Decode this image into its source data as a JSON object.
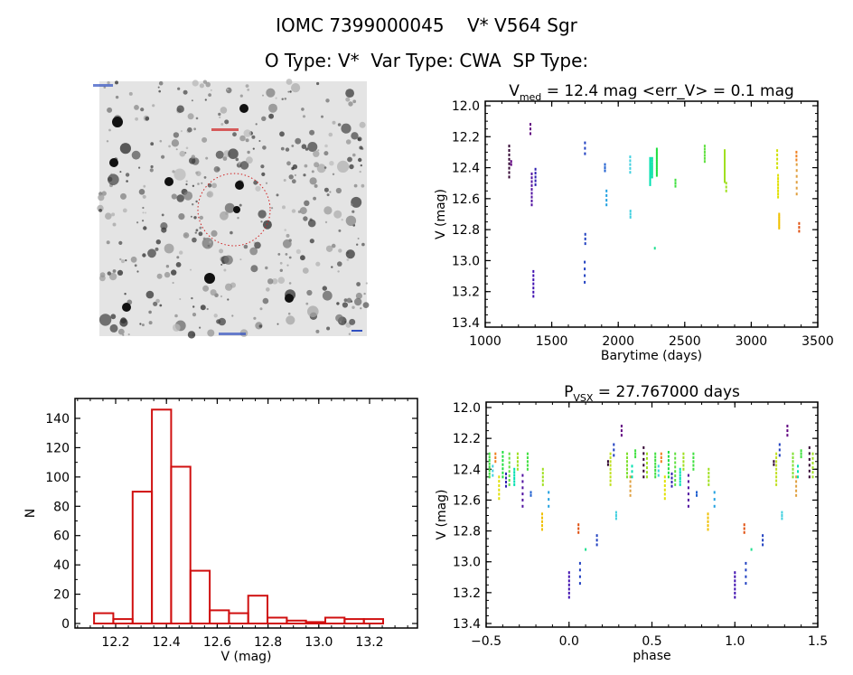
{
  "header": {
    "line1": "IOMC 7399000045    V* V564 Sgr",
    "line2": "O Type: V*  Var Type: CWA  SP Type:"
  },
  "image_panel": {
    "marker_color": "#d02020"
  },
  "chart_data": [
    {
      "type": "scatter",
      "id": "lightcurve",
      "title": "V_med = 12.4 mag <err_V> = 0.1 mag",
      "title_parts": {
        "v": "V",
        "sub": "med",
        "rest": " = 12.4 mag <err_V> = 0.1 mag"
      },
      "xlabel": "Barytime (days)",
      "ylabel": "V (mag)",
      "xlim": [
        1000,
        3500
      ],
      "ylim": [
        13.4,
        12.0
      ],
      "y_inverted": true,
      "xticks": [
        1000,
        1500,
        2000,
        2500,
        3000,
        3500
      ],
      "yticks": [
        "12.0",
        "12.2",
        "12.4",
        "12.6",
        "12.8",
        "13.0",
        "13.2",
        "13.4"
      ],
      "groups": [
        {
          "x": 1180,
          "v": [
            12.26,
            12.46
          ],
          "n": 8,
          "color": "#300030"
        },
        {
          "x": 1195,
          "v": [
            12.36,
            12.38
          ],
          "n": 2,
          "color": "#600080"
        },
        {
          "x": 1340,
          "v": [
            12.12,
            12.18
          ],
          "n": 3,
          "color": "#600080"
        },
        {
          "x": 1350,
          "v": [
            12.44,
            12.64
          ],
          "n": 9,
          "color": "#5010a0"
        },
        {
          "x": 1362,
          "v": [
            13.07,
            13.23
          ],
          "n": 7,
          "color": "#4010b0"
        },
        {
          "x": 1378,
          "v": [
            12.41,
            12.51
          ],
          "n": 5,
          "color": "#3020b0"
        },
        {
          "x": 1750,
          "v": [
            12.24,
            12.31
          ],
          "n": 3,
          "color": "#2040c0"
        },
        {
          "x": 1752,
          "v": [
            12.83,
            12.89
          ],
          "n": 3,
          "color": "#2040c0"
        },
        {
          "x": 1748,
          "v": [
            13.01,
            13.14
          ],
          "n": 4,
          "color": "#2040c0"
        },
        {
          "x": 1900,
          "v": [
            12.38,
            12.42
          ],
          "n": 3,
          "color": "#2060d0"
        },
        {
          "x": 1912,
          "v": [
            12.55,
            12.64
          ],
          "n": 4,
          "color": "#20a0e0"
        },
        {
          "x": 2090,
          "v": [
            12.33,
            12.43
          ],
          "n": 5,
          "color": "#40d0e0"
        },
        {
          "x": 2092,
          "v": [
            12.68,
            12.72
          ],
          "n": 3,
          "color": "#40d0e0"
        },
        {
          "x": 2240,
          "v": [
            12.34,
            12.51
          ],
          "n": 12,
          "color": "#00e0b0"
        },
        {
          "x": 2255,
          "v": [
            12.34,
            12.46
          ],
          "n": 8,
          "color": "#00e0a0"
        },
        {
          "x": 2275,
          "v": [
            12.92,
            12.93
          ],
          "n": 1,
          "color": "#20e090"
        },
        {
          "x": 2290,
          "v": [
            12.28,
            12.45
          ],
          "n": 14,
          "color": "#20e040"
        },
        {
          "x": 2430,
          "v": [
            12.48,
            12.52
          ],
          "n": 3,
          "color": "#40e040"
        },
        {
          "x": 2650,
          "v": [
            12.26,
            12.36
          ],
          "n": 6,
          "color": "#60e040"
        },
        {
          "x": 2800,
          "v": [
            12.29,
            12.49
          ],
          "n": 16,
          "color": "#a0e020"
        },
        {
          "x": 2812,
          "v": [
            12.5,
            12.55
          ],
          "n": 3,
          "color": "#a0e020"
        },
        {
          "x": 3195,
          "v": [
            12.29,
            12.4
          ],
          "n": 5,
          "color": "#d0e000"
        },
        {
          "x": 3202,
          "v": [
            12.45,
            12.59
          ],
          "n": 8,
          "color": "#e0e000"
        },
        {
          "x": 3210,
          "v": [
            12.7,
            12.79
          ],
          "n": 8,
          "color": "#f0c000"
        },
        {
          "x": 3340,
          "v": [
            12.3,
            12.35
          ],
          "n": 3,
          "color": "#f08020"
        },
        {
          "x": 3342,
          "v": [
            12.38,
            12.57
          ],
          "n": 6,
          "color": "#e0a040"
        },
        {
          "x": 3360,
          "v": [
            12.76,
            12.81
          ],
          "n": 3,
          "color": "#e05010"
        }
      ]
    },
    {
      "type": "bar",
      "id": "histogram",
      "xlabel": "V (mag)",
      "ylabel": "N",
      "xlim": [
        12.04,
        13.39
      ],
      "ylim": [
        0,
        150
      ],
      "xticks": [
        "12.2",
        "12.4",
        "12.6",
        "12.8",
        "13.0",
        "13.2"
      ],
      "yticks": [
        "0",
        "20",
        "40",
        "60",
        "80",
        "100",
        "120",
        "140"
      ],
      "bin_start": 12.115,
      "bin_width": 0.0759,
      "counts": [
        7,
        3,
        90,
        146,
        107,
        36,
        9,
        7,
        19,
        4,
        2,
        1,
        4,
        3,
        3
      ],
      "color": "#d01010"
    },
    {
      "type": "scatter",
      "id": "phased",
      "title": "P_vsx = 27.767000 days",
      "title_parts": {
        "v": "P",
        "sub": "VSX",
        "rest": " = 27.767000 days"
      },
      "xlabel": "phase",
      "ylabel": "V (mag)",
      "xlim": [
        -0.5,
        1.5
      ],
      "ylim": [
        13.4,
        12.0
      ],
      "y_inverted": true,
      "xticks": [
        "-0.5",
        "0.0",
        "0.5",
        "1.0",
        "1.5"
      ],
      "yticks": [
        "12.0",
        "12.2",
        "12.4",
        "12.6",
        "12.8",
        "13.0",
        "13.2",
        "13.4"
      ],
      "groups": [
        {
          "x": 0.0,
          "v": [
            13.07,
            13.23
          ],
          "n": 7,
          "color": "#4010b0"
        },
        {
          "x": 0.057,
          "v": [
            12.76,
            12.81
          ],
          "n": 3,
          "color": "#e05010"
        },
        {
          "x": 0.066,
          "v": [
            13.01,
            13.14
          ],
          "n": 4,
          "color": "#2040c0"
        },
        {
          "x": 0.1,
          "v": [
            12.92,
            12.93
          ],
          "n": 1,
          "color": "#20e090"
        },
        {
          "x": 0.168,
          "v": [
            12.83,
            12.89
          ],
          "n": 3,
          "color": "#2040c0"
        },
        {
          "x": 0.235,
          "v": [
            12.35,
            12.37
          ],
          "n": 2,
          "color": "#300030"
        },
        {
          "x": 0.25,
          "v": [
            12.3,
            12.5
          ],
          "n": 9,
          "color": "#c0e020"
        },
        {
          "x": 0.27,
          "v": [
            12.24,
            12.31
          ],
          "n": 3,
          "color": "#2040c0"
        },
        {
          "x": 0.284,
          "v": [
            12.68,
            12.72
          ],
          "n": 3,
          "color": "#40d0e0"
        },
        {
          "x": 0.317,
          "v": [
            12.12,
            12.18
          ],
          "n": 3,
          "color": "#600080"
        },
        {
          "x": 0.35,
          "v": [
            12.3,
            12.45
          ],
          "n": 7,
          "color": "#80e030"
        },
        {
          "x": 0.37,
          "v": [
            12.45,
            12.57
          ],
          "n": 5,
          "color": "#e0a040"
        },
        {
          "x": 0.38,
          "v": [
            12.38,
            12.45
          ],
          "n": 3,
          "color": "#00e0b0"
        },
        {
          "x": 0.4,
          "v": [
            12.28,
            12.32
          ],
          "n": 3,
          "color": "#40e040"
        },
        {
          "x": 0.45,
          "v": [
            12.26,
            12.45
          ],
          "n": 6,
          "color": "#300030"
        },
        {
          "x": 0.47,
          "v": [
            12.3,
            12.45
          ],
          "n": 6,
          "color": "#a0e020"
        },
        {
          "x": 0.52,
          "v": [
            12.3,
            12.45
          ],
          "n": 8,
          "color": "#40e040"
        },
        {
          "x": 0.54,
          "v": [
            12.38,
            12.44
          ],
          "n": 3,
          "color": "#40d0e0"
        },
        {
          "x": 0.556,
          "v": [
            12.3,
            12.35
          ],
          "n": 3,
          "color": "#f08020"
        },
        {
          "x": 0.578,
          "v": [
            12.45,
            12.59
          ],
          "n": 6,
          "color": "#e0e000"
        },
        {
          "x": 0.6,
          "v": [
            12.29,
            12.45
          ],
          "n": 7,
          "color": "#20e040"
        },
        {
          "x": 0.62,
          "v": [
            12.43,
            12.51
          ],
          "n": 4,
          "color": "#3020b0"
        },
        {
          "x": 0.64,
          "v": [
            12.3,
            12.5
          ],
          "n": 8,
          "color": "#60e040"
        },
        {
          "x": 0.67,
          "v": [
            12.4,
            12.5
          ],
          "n": 6,
          "color": "#00e0b0"
        },
        {
          "x": 0.69,
          "v": [
            12.3,
            12.4
          ],
          "n": 5,
          "color": "#a0e020"
        },
        {
          "x": 0.72,
          "v": [
            12.44,
            12.64
          ],
          "n": 6,
          "color": "#5010a0"
        },
        {
          "x": 0.75,
          "v": [
            12.3,
            12.4
          ],
          "n": 5,
          "color": "#40e040"
        },
        {
          "x": 0.77,
          "v": [
            12.55,
            12.57
          ],
          "n": 2,
          "color": "#2060d0"
        },
        {
          "x": 0.838,
          "v": [
            12.69,
            12.79
          ],
          "n": 5,
          "color": "#f0c000"
        },
        {
          "x": 0.842,
          "v": [
            12.4,
            12.5
          ],
          "n": 5,
          "color": "#a0e020"
        },
        {
          "x": 0.877,
          "v": [
            12.55,
            12.64
          ],
          "n": 3,
          "color": "#20a0e0"
        }
      ]
    }
  ]
}
